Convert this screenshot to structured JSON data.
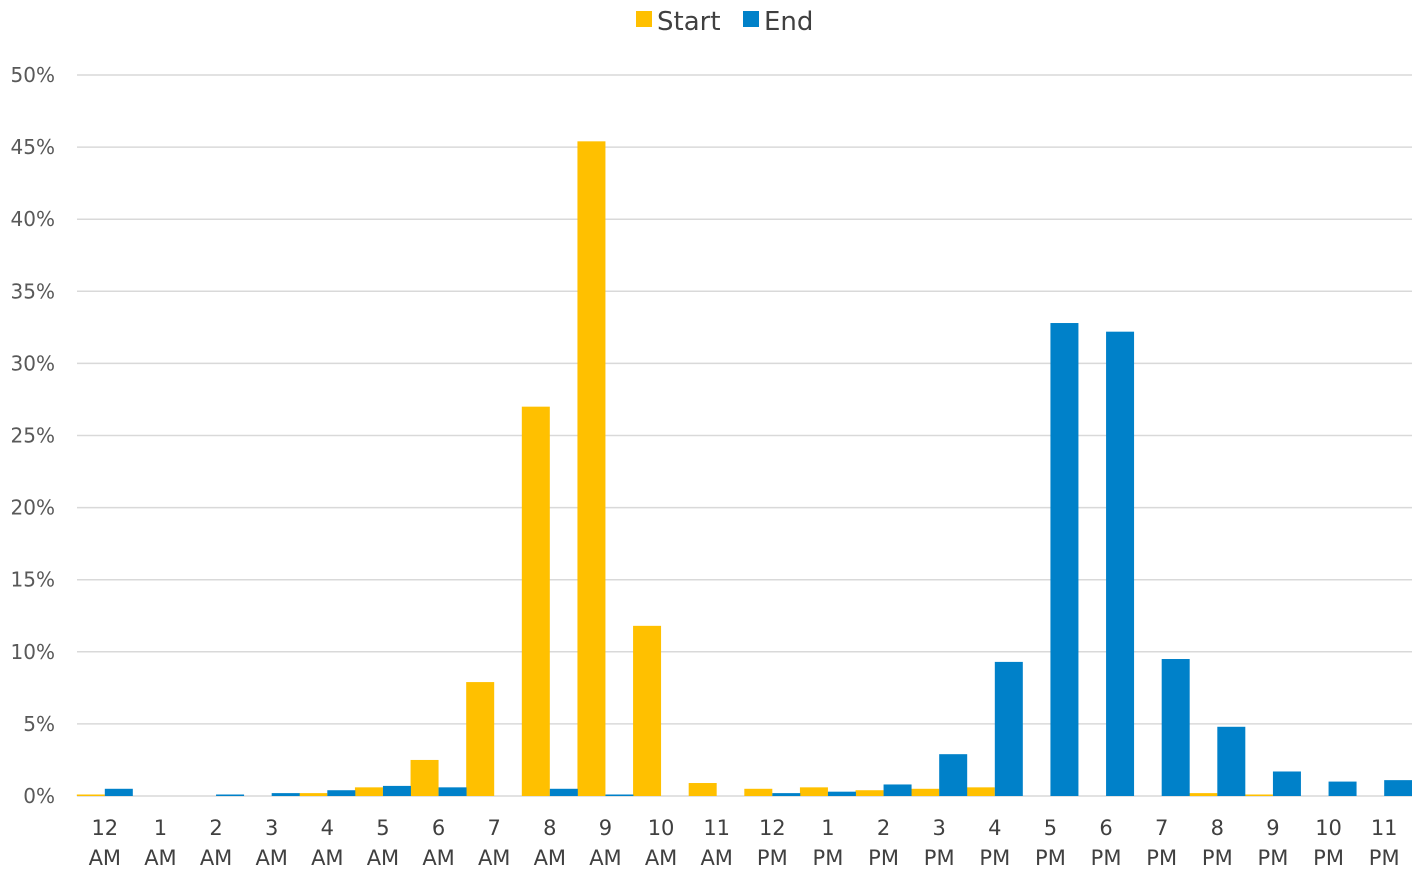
{
  "chart_data": {
    "type": "bar",
    "categories": [
      [
        "12",
        "AM"
      ],
      [
        "1",
        "AM"
      ],
      [
        "2",
        "AM"
      ],
      [
        "3",
        "AM"
      ],
      [
        "4",
        "AM"
      ],
      [
        "5",
        "AM"
      ],
      [
        "6",
        "AM"
      ],
      [
        "7",
        "AM"
      ],
      [
        "8",
        "AM"
      ],
      [
        "9",
        "AM"
      ],
      [
        "10",
        "AM"
      ],
      [
        "11",
        "AM"
      ],
      [
        "12",
        "PM"
      ],
      [
        "1",
        "PM"
      ],
      [
        "2",
        "PM"
      ],
      [
        "3",
        "PM"
      ],
      [
        "4",
        "PM"
      ],
      [
        "5",
        "PM"
      ],
      [
        "6",
        "PM"
      ],
      [
        "7",
        "PM"
      ],
      [
        "8",
        "PM"
      ],
      [
        "9",
        "PM"
      ],
      [
        "10",
        "PM"
      ],
      [
        "11",
        "PM"
      ]
    ],
    "series": [
      {
        "name": "Start",
        "color": "#FFC000",
        "values": [
          0.1,
          0.0,
          0.0,
          0.0,
          0.2,
          0.6,
          2.5,
          7.9,
          27.0,
          45.4,
          11.8,
          0.9,
          0.5,
          0.6,
          0.4,
          0.5,
          0.6,
          0.0,
          0.0,
          0.0,
          0.2,
          0.1,
          0.0,
          0.0
        ]
      },
      {
        "name": "End",
        "color": "#0081C9",
        "values": [
          0.5,
          0.0,
          0.1,
          0.2,
          0.4,
          0.7,
          0.6,
          0.0,
          0.5,
          0.1,
          0.0,
          0.0,
          0.2,
          0.3,
          0.8,
          2.9,
          9.3,
          32.8,
          32.2,
          9.5,
          4.8,
          1.7,
          1.0,
          1.1
        ]
      }
    ],
    "y_ticks": [
      "0%",
      "5%",
      "10%",
      "15%",
      "20%",
      "25%",
      "30%",
      "35%",
      "40%",
      "45%",
      "50%"
    ],
    "ylim": [
      0,
      50
    ],
    "legend_position": "top-center",
    "grid": true
  }
}
